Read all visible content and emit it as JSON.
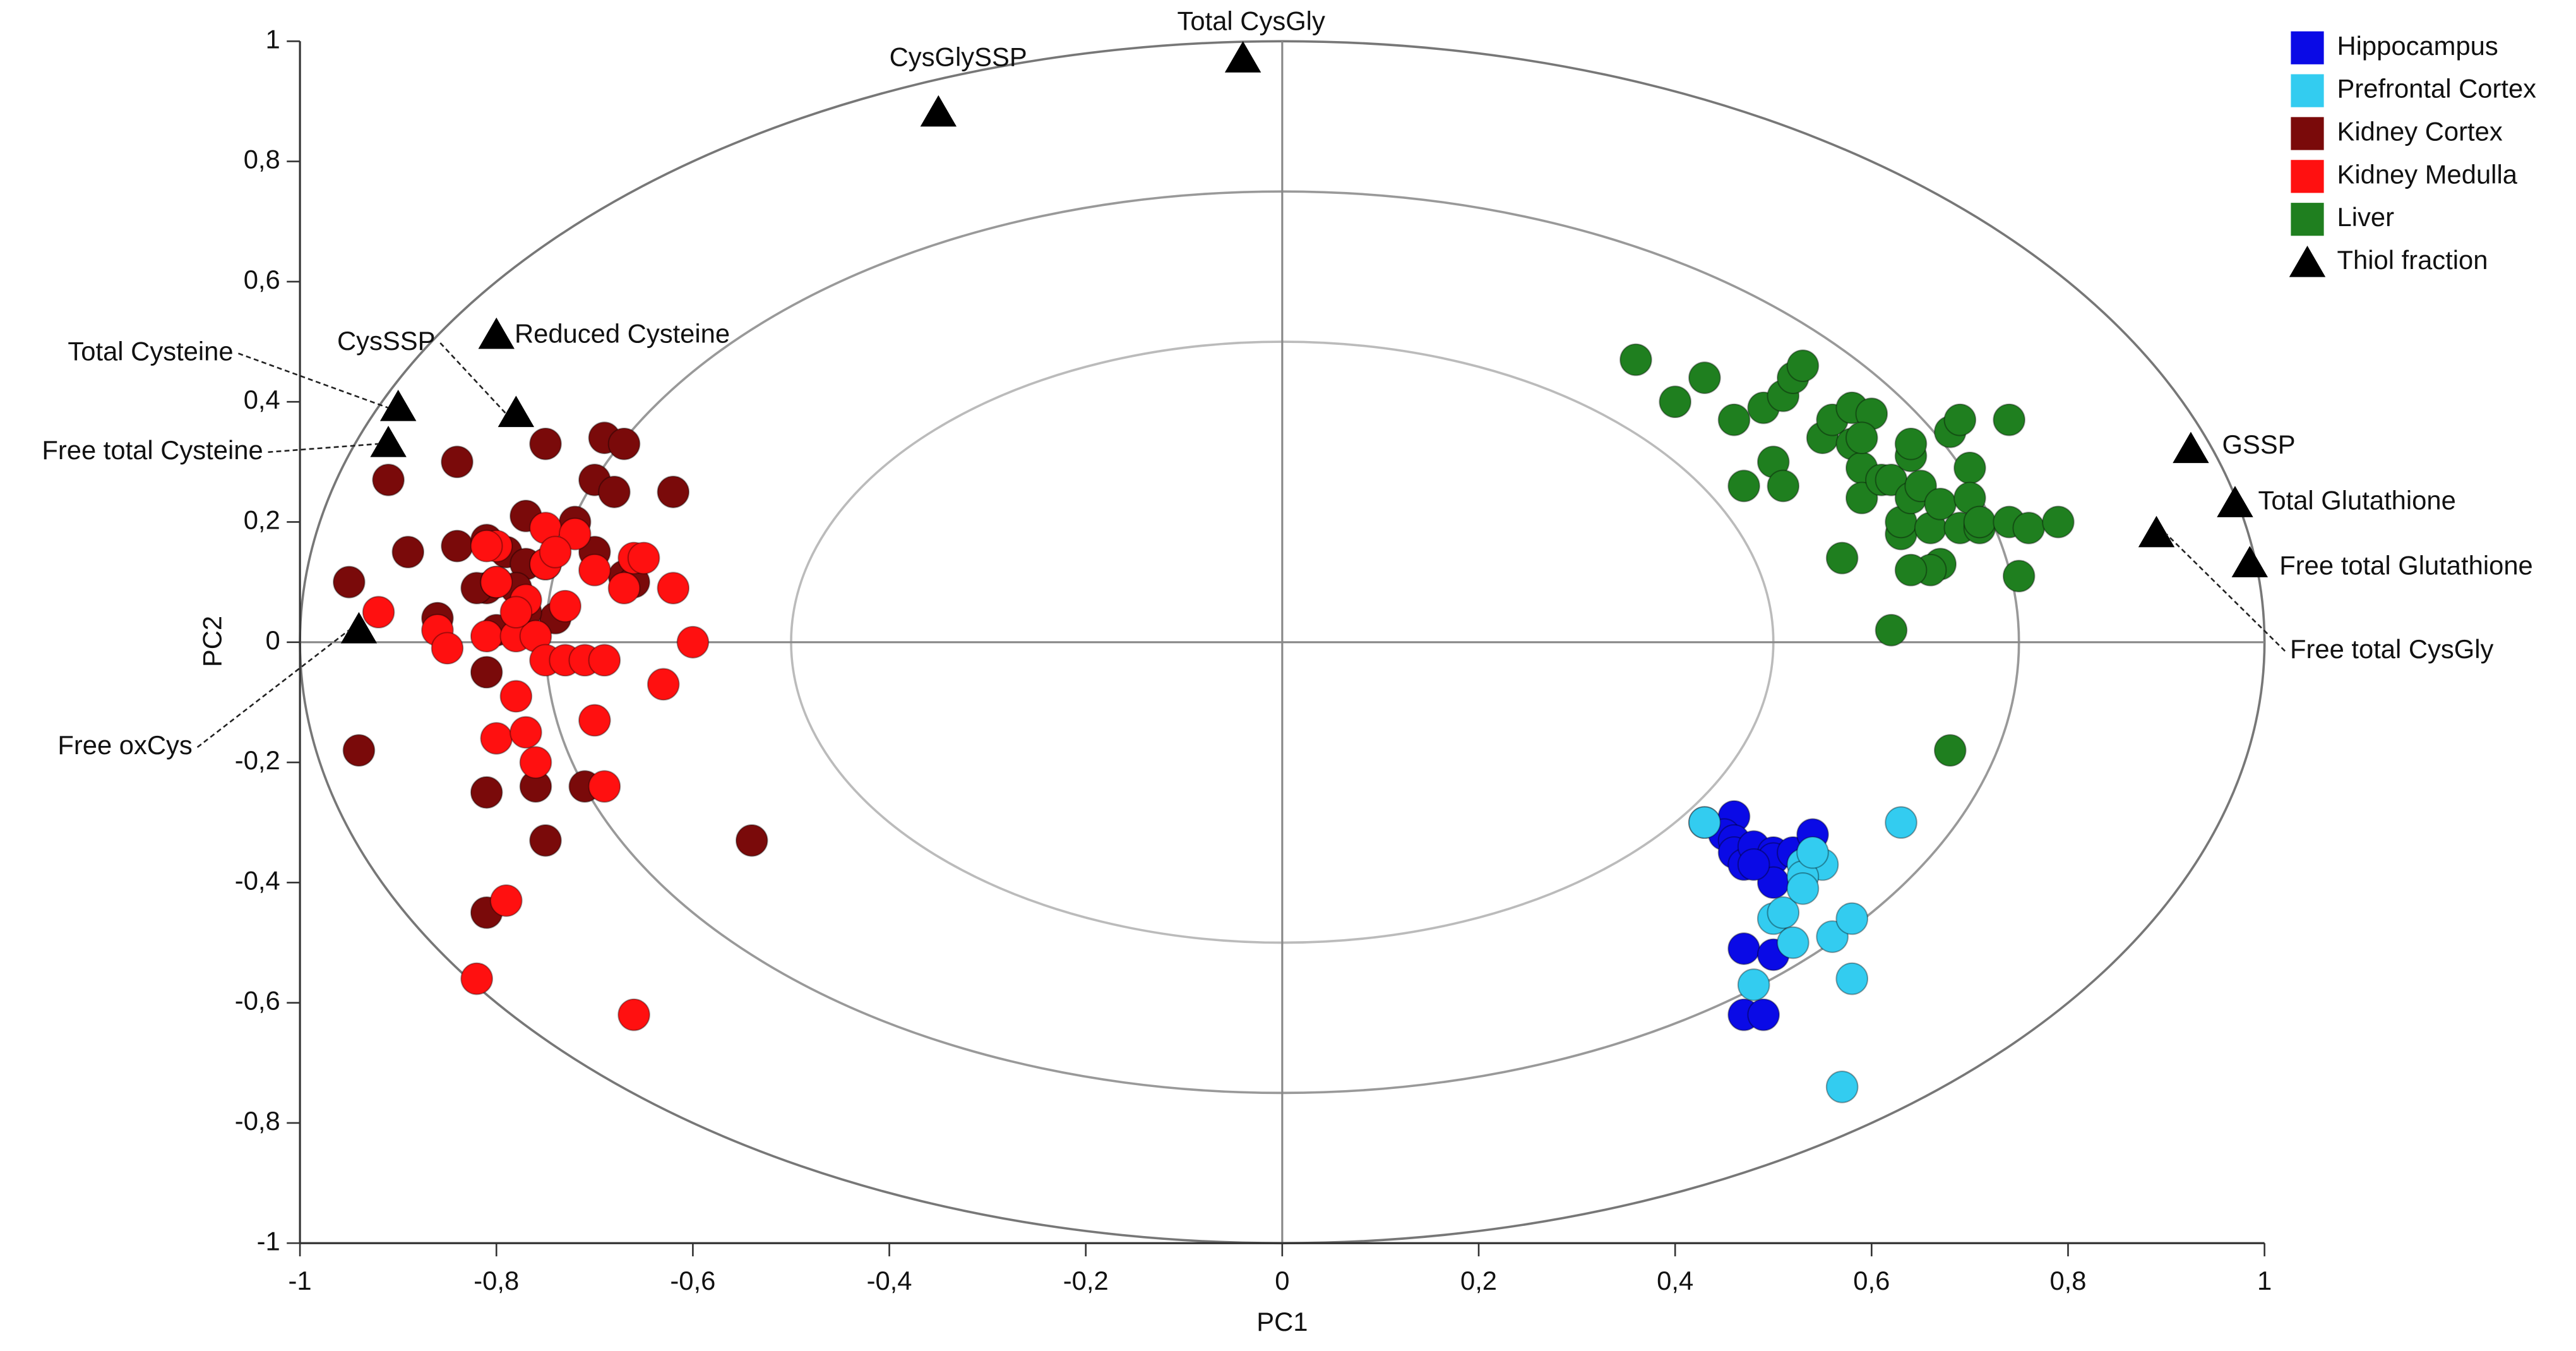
{
  "chart_data": {
    "type": "scatter",
    "xlabel": "PC1",
    "ylabel": "PC2",
    "xlim": [
      -1,
      1
    ],
    "ylim": [
      -1,
      1
    ],
    "xticks": [
      -1,
      {
        "value": -0.8,
        "label": "-0,8"
      },
      {
        "value": -0.6,
        "label": "-0,6"
      },
      {
        "value": -0.4,
        "label": "-0,4"
      },
      {
        "value": -0.2,
        "label": "-0,2"
      },
      0,
      {
        "value": 0.2,
        "label": "0,2"
      },
      {
        "value": 0.4,
        "label": "0,4"
      },
      {
        "value": 0.6,
        "label": "0,6"
      },
      {
        "value": 0.8,
        "label": "0,8"
      },
      1
    ],
    "yticks": [
      -1,
      {
        "value": -0.8,
        "label": "-0,8"
      },
      {
        "value": -0.6,
        "label": "-0,6"
      },
      {
        "value": -0.4,
        "label": "-0,4"
      },
      {
        "value": -0.2,
        "label": "-0,2"
      },
      0,
      {
        "value": 0.2,
        "label": "0,2"
      },
      {
        "value": 0.4,
        "label": "0,4"
      },
      {
        "value": 0.6,
        "label": "0,6"
      },
      {
        "value": 0.8,
        "label": "0,8"
      },
      1
    ],
    "circle_radii": [
      0.5,
      0.75,
      1
    ],
    "legend": "upper right",
    "series": [
      {
        "name": "Hippocampus",
        "color": "#0a0ae6",
        "marker": "circle",
        "x": [
          0.43,
          0.46,
          0.45,
          0.46,
          0.46,
          0.47,
          0.48,
          0.5,
          0.5,
          0.52,
          0.54,
          0.5,
          0.47,
          0.5,
          0.47,
          0.49,
          0.48
        ],
        "y": [
          -0.3,
          -0.29,
          -0.32,
          -0.33,
          -0.35,
          -0.37,
          -0.34,
          -0.35,
          -0.36,
          -0.35,
          -0.32,
          -0.4,
          -0.51,
          -0.52,
          -0.62,
          -0.62,
          -0.37
        ]
      },
      {
        "name": "Prefrontal Cortex",
        "color": "#33ccf0",
        "marker": "circle",
        "x": [
          0.43,
          0.53,
          0.55,
          0.53,
          0.5,
          0.51,
          0.52,
          0.56,
          0.58,
          0.58,
          0.48,
          0.57,
          0.63,
          0.54,
          0.53
        ],
        "y": [
          -0.3,
          -0.37,
          -0.37,
          -0.39,
          -0.46,
          -0.45,
          -0.5,
          -0.49,
          -0.46,
          -0.56,
          -0.57,
          -0.74,
          -0.3,
          -0.35,
          -0.41
        ]
      },
      {
        "name": "Kidney Cortex",
        "color": "#7a0a0a",
        "marker": "circle",
        "x": [
          -0.91,
          -0.84,
          -0.75,
          -0.69,
          -0.67,
          -0.7,
          -0.68,
          -0.62,
          -0.77,
          -0.72,
          -0.89,
          -0.84,
          -0.81,
          -0.79,
          -0.81,
          -0.77,
          -0.75,
          -0.7,
          -0.67,
          -0.95,
          -0.66,
          -0.86,
          -0.82,
          -0.8,
          -0.78,
          -0.74,
          -0.81,
          -0.94,
          -0.81,
          -0.76,
          -0.71,
          -0.75,
          -0.54,
          -0.81,
          -0.8,
          -0.77
        ],
        "y": [
          0.27,
          0.3,
          0.33,
          0.34,
          0.33,
          0.27,
          0.25,
          0.25,
          0.21,
          0.2,
          0.15,
          0.16,
          0.17,
          0.15,
          0.09,
          0.13,
          0.13,
          0.15,
          0.11,
          0.1,
          0.1,
          0.04,
          0.09,
          0.1,
          0.09,
          0.04,
          -0.05,
          -0.18,
          -0.25,
          -0.24,
          -0.24,
          -0.33,
          -0.33,
          -0.45,
          0.02,
          0.05
        ]
      },
      {
        "name": "Kidney Medulla",
        "color": "#ff1010",
        "marker": "circle",
        "x": [
          -0.92,
          -0.86,
          -0.85,
          -0.81,
          -0.8,
          -0.78,
          -0.76,
          -0.75,
          -0.75,
          -0.72,
          -0.7,
          -0.66,
          -0.65,
          -0.67,
          -0.62,
          -0.6,
          -0.63,
          -0.8,
          -0.77,
          -0.76,
          -0.75,
          -0.73,
          -0.71,
          -0.69,
          -0.77,
          -0.78,
          -0.7,
          -0.69,
          -0.78,
          -0.79,
          -0.82,
          -0.66,
          -0.81,
          -0.74,
          -0.8,
          -0.73
        ],
        "y": [
          0.05,
          0.02,
          -0.01,
          0.01,
          0.16,
          0.01,
          0.01,
          0.19,
          0.13,
          0.18,
          0.12,
          0.14,
          0.14,
          0.09,
          0.09,
          0.0,
          -0.07,
          -0.16,
          -0.15,
          -0.2,
          -0.03,
          -0.03,
          -0.03,
          -0.03,
          0.07,
          0.05,
          -0.13,
          -0.24,
          -0.09,
          -0.43,
          -0.56,
          -0.62,
          0.16,
          0.15,
          0.1,
          0.06
        ]
      },
      {
        "name": "Liver",
        "color": "#1f7f1f",
        "marker": "circle",
        "x": [
          0.36,
          0.4,
          0.43,
          0.46,
          0.47,
          0.49,
          0.5,
          0.51,
          0.51,
          0.52,
          0.53,
          0.55,
          0.56,
          0.57,
          0.58,
          0.58,
          0.59,
          0.59,
          0.6,
          0.59,
          0.61,
          0.62,
          0.63,
          0.62,
          0.63,
          0.64,
          0.64,
          0.65,
          0.64,
          0.66,
          0.67,
          0.67,
          0.68,
          0.69,
          0.7,
          0.7,
          0.69,
          0.71,
          0.71,
          0.74,
          0.74,
          0.75,
          0.76,
          0.79,
          0.68,
          0.66,
          0.64
        ],
        "y": [
          0.47,
          0.4,
          0.44,
          0.37,
          0.26,
          0.39,
          0.3,
          0.41,
          0.26,
          0.44,
          0.46,
          0.34,
          0.37,
          0.14,
          0.39,
          0.33,
          0.29,
          0.24,
          0.38,
          0.34,
          0.27,
          0.27,
          0.18,
          0.02,
          0.2,
          0.31,
          0.24,
          0.26,
          0.33,
          0.19,
          0.13,
          0.23,
          0.35,
          0.37,
          0.29,
          0.24,
          0.19,
          0.19,
          0.2,
          0.37,
          0.2,
          0.11,
          0.19,
          0.2,
          -0.18,
          0.12,
          0.12
        ]
      },
      {
        "name": "Thiol fraction",
        "color": "#000000",
        "marker": "triangle",
        "x": [
          -0.04,
          -0.35,
          -0.8,
          -0.78,
          -0.9,
          -0.91,
          -0.94,
          0.925,
          0.97,
          0.985,
          0.89
        ],
        "y": [
          0.97,
          0.88,
          0.51,
          0.38,
          0.39,
          0.33,
          0.02,
          0.32,
          0.23,
          0.13,
          0.18
        ],
        "labels": [
          "Total CysGly",
          "CysGlySSP",
          "Reduced Cysteine",
          "CysSSP",
          "Total Cysteine",
          "Free total Cysteine",
          "Free oxCys",
          "GSSP",
          "Total Glutathione",
          "Free total Glutathione",
          "Free total CysGly"
        ]
      }
    ]
  }
}
